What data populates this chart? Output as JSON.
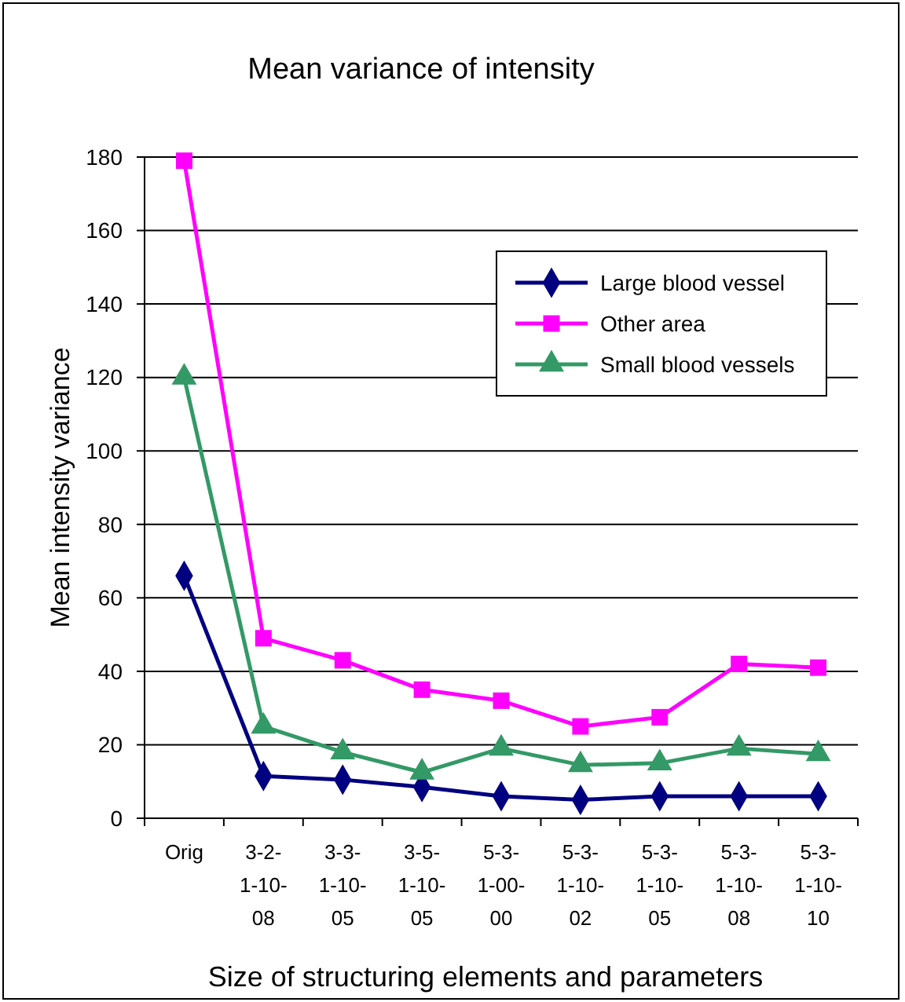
{
  "chart_data": {
    "type": "line",
    "title": "Mean variance of intensity",
    "xlabel": "Size of structuring elements and parameters",
    "ylabel": "Mean intensity variance",
    "categories": [
      "Orig",
      "3-2-1-10-08",
      "3-3-1-10-05",
      "3-5-1-10-05",
      "5-3-1-00-00",
      "5-3-1-10-02",
      "5-3-1-10-05",
      "5-3-1-10-08",
      "5-3-1-10-10"
    ],
    "series": [
      {
        "name": "Large blood vessel",
        "color": "#000080",
        "marker": "diamond",
        "values": [
          66,
          11.5,
          10.5,
          8.5,
          6,
          5,
          6,
          6,
          6
        ]
      },
      {
        "name": "Other area",
        "color": "#ff00ff",
        "marker": "square",
        "values": [
          179,
          49,
          43,
          35,
          32,
          25,
          27.5,
          42,
          41
        ]
      },
      {
        "name": "Small blood vessels",
        "color": "#339966",
        "marker": "triangle",
        "values": [
          120,
          25,
          18,
          12.5,
          19,
          14.5,
          15,
          19,
          17.5
        ]
      }
    ],
    "ylim": [
      0,
      180
    ],
    "yticks": [
      0,
      20,
      40,
      60,
      80,
      100,
      120,
      140,
      160,
      180
    ],
    "grid": "y",
    "legend": "top right",
    "line_style": "solid"
  }
}
